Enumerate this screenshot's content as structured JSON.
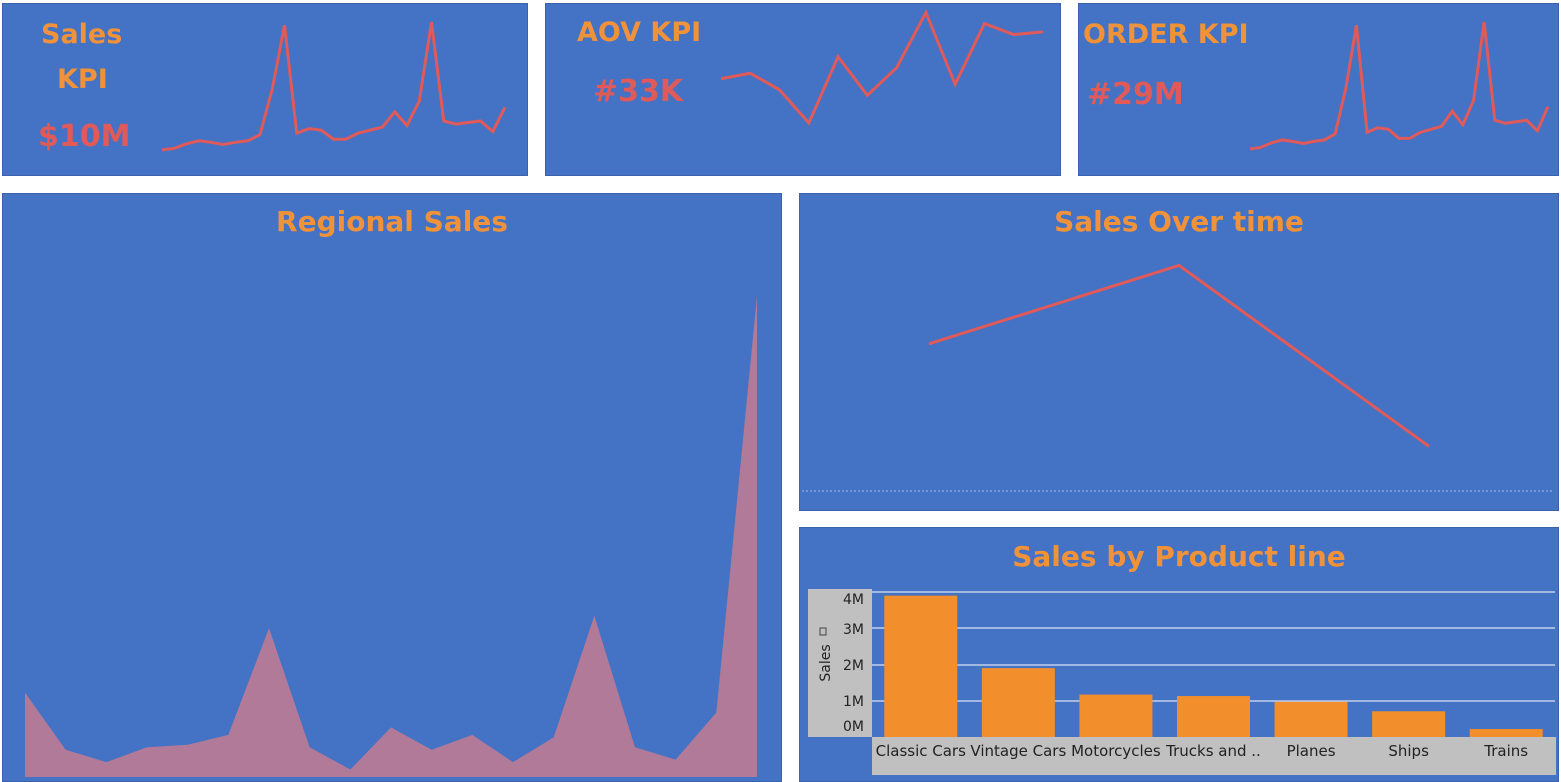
{
  "kpis": {
    "sales": {
      "title_line1": "Sales",
      "title_line2": "KPI",
      "value": "$10M"
    },
    "aov": {
      "title": "AOV KPI",
      "value": "#33K"
    },
    "order": {
      "title": "ORDER KPI",
      "value": "#29M"
    }
  },
  "titles": {
    "regional": "Regional Sales",
    "over_time": "Sales Over time",
    "product_line": "Sales by Product line"
  },
  "colors": {
    "panel": "#4472c4",
    "title": "#f0923a",
    "line": "#e05a5a",
    "area": "#b07a98",
    "bar": "#f28e2b",
    "axis_bg": "#c0c0c0"
  },
  "chart_data": [
    {
      "id": "sales-kpi-sparkline",
      "type": "line",
      "values": [
        2,
        2.5,
        4,
        5,
        4.5,
        3.8,
        4.5,
        5,
        7,
        22,
        43,
        7.5,
        9,
        8.5,
        5.5,
        5.5,
        7.5,
        8.5,
        9.5,
        14.5,
        10,
        18,
        44,
        11.5,
        10.5,
        11,
        11.5,
        8,
        16
      ],
      "ylim": [
        0,
        46
      ]
    },
    {
      "id": "aov-kpi-sparkline",
      "type": "line",
      "values": [
        31,
        32,
        29,
        23,
        35,
        28,
        33,
        43,
        30,
        41,
        39,
        39.5
      ],
      "ylim": [
        21,
        44
      ]
    },
    {
      "id": "order-kpi-sparkline",
      "type": "line",
      "values": [
        2,
        2.5,
        4,
        5,
        4.5,
        3.8,
        4.5,
        5,
        7,
        22,
        43,
        7.5,
        9,
        8.5,
        5.5,
        5.5,
        7.5,
        8.5,
        9.5,
        14.5,
        10,
        18,
        44,
        11.5,
        10.5,
        11,
        11.5,
        8,
        16
      ],
      "ylim": [
        0,
        46
      ]
    },
    {
      "id": "regional-sales",
      "type": "area",
      "values": [
        17,
        5.5,
        3,
        6,
        6.5,
        8.5,
        30,
        6,
        1.5,
        10,
        5.5,
        8.5,
        3,
        8,
        32.5,
        6,
        3.5,
        13,
        97
      ],
      "ylim": [
        0,
        100
      ]
    },
    {
      "id": "sales-over-time",
      "type": "line",
      "values": [
        3.5,
        4.8,
        1.8
      ],
      "ylim": [
        0,
        6
      ]
    },
    {
      "id": "sales-by-product-line",
      "type": "bar",
      "categories": [
        "Classic Cars",
        "Vintage Cars",
        "Motorcycles",
        "Trucks and ..",
        "Planes",
        "Ships",
        "Trains"
      ],
      "values": [
        3.9,
        1.9,
        1.17,
        1.13,
        0.97,
        0.71,
        0.22
      ],
      "ylabel": "Sales",
      "ylim": [
        0,
        4
      ],
      "yticks": [
        "0M",
        "1M",
        "2M",
        "3M",
        "4M"
      ],
      "grid": true
    }
  ]
}
